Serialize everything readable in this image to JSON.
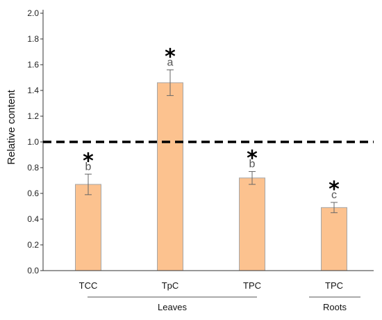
{
  "chart_data": {
    "type": "bar",
    "ylabel": "Relative content",
    "ylim": [
      0,
      2.0
    ],
    "yticks": [
      "0.0",
      "0.2",
      "0.4",
      "0.6",
      "0.8",
      "1.0",
      "1.2",
      "1.4",
      "1.6",
      "1.8",
      "2.0"
    ],
    "categories": [
      "TCC",
      "TpC",
      "TPC",
      "TPC"
    ],
    "values": [
      0.67,
      1.46,
      0.72,
      0.49
    ],
    "errors": [
      0.08,
      0.1,
      0.05,
      0.04
    ],
    "letters": [
      "b",
      "a",
      "b",
      "c"
    ],
    "significance": [
      "*",
      "*",
      "*",
      "*"
    ],
    "reference_line": 1.0,
    "groups": [
      {
        "label": "Leaves",
        "categories": [
          0,
          1,
          2
        ]
      },
      {
        "label": "Roots",
        "categories": [
          3
        ]
      }
    ],
    "bar_color": "#fcc28f",
    "bar_edge_color": "#a6a6a6",
    "grid": false,
    "legend": "none"
  }
}
